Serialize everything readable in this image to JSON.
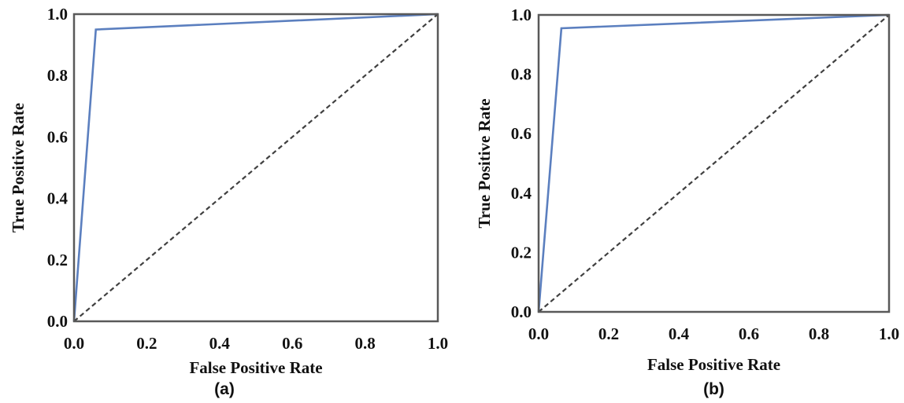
{
  "chart_data": [
    {
      "type": "line",
      "panel_label": "(a)",
      "xlabel": "False Positive Rate",
      "ylabel": "True Positive Rate",
      "xlim": [
        0,
        1
      ],
      "ylim": [
        0,
        1
      ],
      "xticks": [
        "0.0",
        "0.2",
        "0.4",
        "0.6",
        "0.8",
        "1.0"
      ],
      "yticks": [
        "0.0",
        "0.2",
        "0.4",
        "0.6",
        "0.8",
        "1.0"
      ],
      "grid": false,
      "series": [
        {
          "style": "solid",
          "color": "#5b7fbf",
          "x": [
            0.0,
            0.06,
            1.0
          ],
          "y": [
            0.0,
            0.95,
            1.0
          ]
        },
        {
          "style": "dashed",
          "color": "#404040",
          "x": [
            0.0,
            1.0
          ],
          "y": [
            0.0,
            1.0
          ]
        }
      ]
    },
    {
      "type": "line",
      "panel_label": "(b)",
      "xlabel": "False Positive Rate",
      "ylabel": "True Positive Rate",
      "xlim": [
        0,
        1
      ],
      "ylim": [
        0,
        1
      ],
      "xticks": [
        "0.0",
        "0.2",
        "0.4",
        "0.6",
        "0.8",
        "1.0"
      ],
      "yticks": [
        "0.0",
        "0.2",
        "0.4",
        "0.6",
        "0.8",
        "1.0"
      ],
      "grid": false,
      "series": [
        {
          "style": "solid",
          "color": "#5b7fbf",
          "x": [
            0.0,
            0.065,
            1.0
          ],
          "y": [
            0.0,
            0.955,
            1.0
          ]
        },
        {
          "style": "dashed",
          "color": "#404040",
          "x": [
            0.0,
            1.0
          ],
          "y": [
            0.0,
            1.0
          ]
        }
      ]
    }
  ]
}
